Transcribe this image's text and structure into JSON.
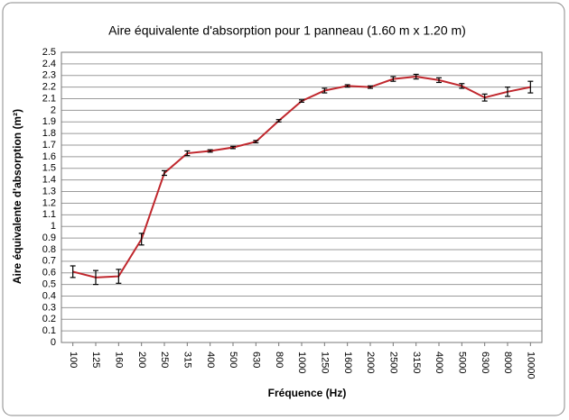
{
  "chart_data": {
    "type": "line",
    "title": "Aire équivalente d'absorption pour 1 panneau (1.60 m x 1.20 m)",
    "x_label": "Fréquence (Hz)",
    "y_label": "Aire équivalente d'absorption (m²)",
    "categories": [
      "100",
      "125",
      "160",
      "200",
      "250",
      "315",
      "400",
      "500",
      "630",
      "800",
      "1000",
      "1250",
      "1600",
      "2000",
      "2500",
      "3150",
      "4000",
      "5000",
      "6300",
      "8000",
      "10000"
    ],
    "series": [
      {
        "color": "#c0272d",
        "values": [
          0.61,
          0.56,
          0.57,
          0.89,
          1.46,
          1.63,
          1.65,
          1.68,
          1.73,
          1.91,
          2.08,
          2.17,
          2.21,
          2.2,
          2.27,
          2.29,
          2.26,
          2.21,
          2.11,
          2.16,
          2.2
        ],
        "errors": [
          0.05,
          0.06,
          0.06,
          0.05,
          0.02,
          0.02,
          0.01,
          0.01,
          0.01,
          0.01,
          0.01,
          0.02,
          0.01,
          0.01,
          0.02,
          0.02,
          0.02,
          0.02,
          0.03,
          0.04,
          0.05
        ]
      }
    ],
    "ylim": [
      0,
      2.5
    ],
    "yticks": [
      0,
      0.1,
      0.2,
      0.3,
      0.4,
      0.5,
      0.6,
      0.7,
      0.8,
      0.9,
      1,
      1.1,
      1.2,
      1.3,
      1.4,
      1.5,
      1.6,
      1.7,
      1.8,
      1.9,
      2,
      2.1,
      2.2,
      2.3,
      2.4,
      2.5
    ],
    "grid": true
  }
}
